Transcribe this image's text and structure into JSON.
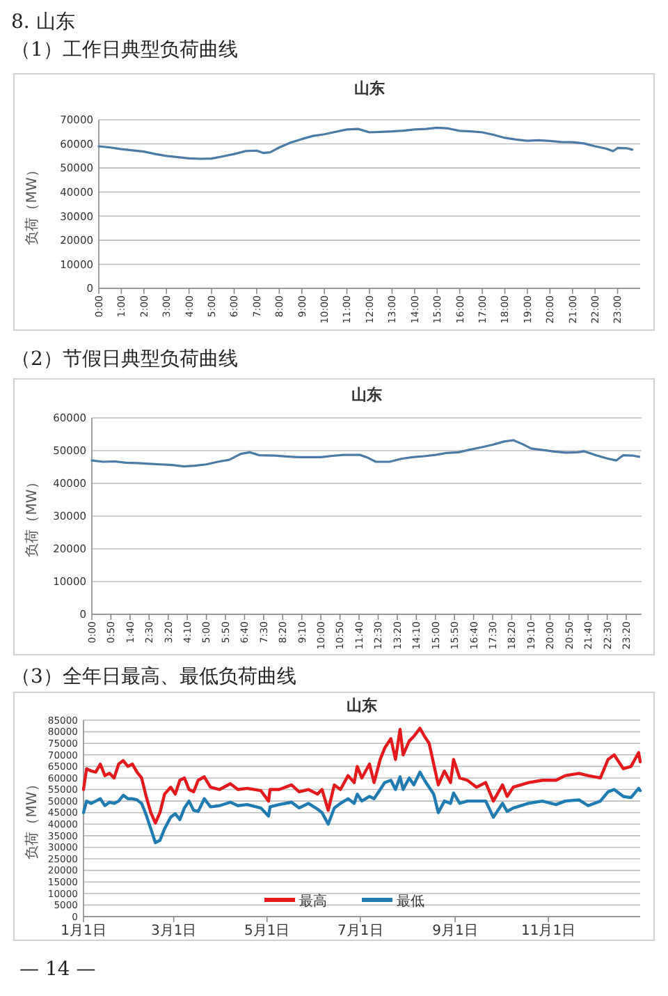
{
  "chart_data": [
    {
      "type": "line",
      "title": "山东",
      "annotations": [
        "8. 山东",
        "（1）工作日典型负荷曲线"
      ],
      "ylabel": "负荷（MW）",
      "grid": "y",
      "color": "#4a7ba7",
      "x": [
        0,
        0.5,
        1,
        1.5,
        2,
        2.5,
        3,
        3.5,
        4,
        4.5,
        5,
        5.5,
        6,
        6.5,
        7,
        7.3,
        7.6,
        8,
        8.5,
        9,
        9.5,
        10,
        10.5,
        11,
        11.5,
        12,
        12.5,
        13,
        13.5,
        14,
        14.5,
        15,
        15.5,
        16,
        16.5,
        17,
        17.5,
        18,
        18.5,
        19,
        19.5,
        20,
        20.5,
        21,
        21.5,
        22,
        22.5,
        22.8,
        23,
        23.4,
        23.65
      ],
      "values": [
        59000,
        58500,
        57800,
        57300,
        56800,
        55800,
        55000,
        54500,
        54000,
        53800,
        53900,
        54800,
        55800,
        57000,
        57200,
        56200,
        56500,
        58500,
        60500,
        62000,
        63300,
        64000,
        65000,
        66000,
        66200,
        64800,
        65000,
        65200,
        65500,
        66000,
        66200,
        66700,
        66400,
        65400,
        65200,
        64800,
        63800,
        62500,
        61800,
        61300,
        61500,
        61200,
        60800,
        60700,
        60200,
        59000,
        58000,
        57000,
        58300,
        58200,
        57600
      ],
      "xlim": [
        0,
        24
      ],
      "ylim": [
        0,
        70000
      ],
      "yticks": [
        0,
        10000,
        20000,
        30000,
        40000,
        50000,
        60000,
        70000
      ],
      "xticks": [
        {
          "value": 0,
          "label": "0:00"
        },
        {
          "value": 1,
          "label": "1:00"
        },
        {
          "value": 2,
          "label": "2:00"
        },
        {
          "value": 3,
          "label": "3:00"
        },
        {
          "value": 4,
          "label": "4:00"
        },
        {
          "value": 5,
          "label": "5:00"
        },
        {
          "value": 6,
          "label": "6:00"
        },
        {
          "value": 7,
          "label": "7:00"
        },
        {
          "value": 8,
          "label": "8:00"
        },
        {
          "value": 9,
          "label": "9:00"
        },
        {
          "value": 10,
          "label": "10:00"
        },
        {
          "value": 11,
          "label": "11:00"
        },
        {
          "value": 12,
          "label": "12:00"
        },
        {
          "value": 13,
          "label": "13:00"
        },
        {
          "value": 14,
          "label": "14:00"
        },
        {
          "value": 15,
          "label": "15:00"
        },
        {
          "value": 16,
          "label": "16:00"
        },
        {
          "value": 17,
          "label": "17:00"
        },
        {
          "value": 18,
          "label": "18:00"
        },
        {
          "value": 19,
          "label": "19:00"
        },
        {
          "value": 20,
          "label": "20:00"
        },
        {
          "value": 21,
          "label": "21:00"
        },
        {
          "value": 22,
          "label": "22:00"
        },
        {
          "value": 23,
          "label": "23:00"
        }
      ]
    },
    {
      "type": "line",
      "title": "山东",
      "annotations": [
        "（2）节假日典型负荷曲线"
      ],
      "ylabel": "负荷（MW）",
      "grid": "y",
      "color": "#4a7ba7",
      "x": [
        0,
        0.5,
        1,
        1.5,
        2,
        2.5,
        3,
        3.5,
        4,
        4.5,
        5,
        5.5,
        6,
        6.5,
        6.9,
        7.3,
        8,
        8.5,
        9,
        10,
        10.5,
        11,
        11.7,
        12,
        12.4,
        13,
        13.5,
        14,
        14.5,
        15,
        15.5,
        16,
        16.5,
        17,
        17.5,
        18,
        18.4,
        18.8,
        19.2,
        19.7,
        20.2,
        20.7,
        21.2,
        21.5,
        22,
        22.5,
        22.9,
        23.2,
        23.6,
        23.9
      ],
      "values": [
        47000,
        46600,
        46700,
        46300,
        46200,
        46000,
        45800,
        45600,
        45200,
        45400,
        45800,
        46600,
        47200,
        49000,
        49500,
        48600,
        48500,
        48200,
        48000,
        48000,
        48400,
        48700,
        48700,
        48000,
        46600,
        46600,
        47500,
        48000,
        48300,
        48700,
        49300,
        49500,
        50300,
        51000,
        51800,
        52800,
        53200,
        52000,
        50600,
        50200,
        49700,
        49400,
        49500,
        49800,
        48600,
        47600,
        47000,
        48600,
        48500,
        48100
      ],
      "xlim": [
        0,
        24
      ],
      "ylim": [
        0,
        60000
      ],
      "yticks": [
        0,
        10000,
        20000,
        30000,
        40000,
        50000,
        60000
      ],
      "xticks": [
        {
          "value": 0,
          "label": "0:00"
        },
        {
          "value": 0.8333,
          "label": "0:50"
        },
        {
          "value": 1.6667,
          "label": "1:40"
        },
        {
          "value": 2.5,
          "label": "2:30"
        },
        {
          "value": 3.3333,
          "label": "3:20"
        },
        {
          "value": 4.1667,
          "label": "4:10"
        },
        {
          "value": 5,
          "label": "5:00"
        },
        {
          "value": 5.8333,
          "label": "5:50"
        },
        {
          "value": 6.6667,
          "label": "6:40"
        },
        {
          "value": 7.5,
          "label": "7:30"
        },
        {
          "value": 8.3333,
          "label": "8:20"
        },
        {
          "value": 9.1667,
          "label": "9:10"
        },
        {
          "value": 10,
          "label": "10:00"
        },
        {
          "value": 10.8333,
          "label": "10:50"
        },
        {
          "value": 11.6667,
          "label": "11:40"
        },
        {
          "value": 12.5,
          "label": "12:30"
        },
        {
          "value": 13.3333,
          "label": "13:20"
        },
        {
          "value": 14.1667,
          "label": "14:10"
        },
        {
          "value": 15,
          "label": "15:00"
        },
        {
          "value": 15.8333,
          "label": "15:50"
        },
        {
          "value": 16.6667,
          "label": "16:40"
        },
        {
          "value": 17.5,
          "label": "17:30"
        },
        {
          "value": 18.3333,
          "label": "18:20"
        },
        {
          "value": 19.1667,
          "label": "19:10"
        },
        {
          "value": 20,
          "label": "20:00"
        },
        {
          "value": 20.8333,
          "label": "20:50"
        },
        {
          "value": 21.6667,
          "label": "21:40"
        },
        {
          "value": 22.5,
          "label": "22:30"
        },
        {
          "value": 23.3333,
          "label": "23:20"
        }
      ]
    },
    {
      "type": "line",
      "title": "山东",
      "annotations": [
        "（3）全年日最高、最低负荷曲线",
        "— 14 —"
      ],
      "ylabel": "负荷（MW）",
      "grid": "y",
      "legend": "bottom",
      "x": [
        "--01-01",
        "--01-03",
        "--01-06",
        "--01-09",
        "--01-12",
        "--01-15",
        "--01-18",
        "--01-21",
        "--01-24",
        "--01-27",
        "--01-30",
        "--02-02",
        "--02-05",
        "--02-08",
        "--02-11",
        "--02-14",
        "--02-17",
        "--02-20",
        "--02-23",
        "--02-27",
        "--03-02",
        "--03-05",
        "--03-08",
        "--03-11",
        "--03-14",
        "--03-17",
        "--03-21",
        "--03-25",
        "--03-31",
        "--04-07",
        "--04-12",
        "--04-18",
        "--04-27",
        "--05-02",
        "--05-03",
        "--05-09",
        "--05-17",
        "--05-22",
        "--05-28",
        "--06-03",
        "--06-06",
        "--06-10",
        "--06-14",
        "--06-18",
        "--06-23",
        "--06-27",
        "--06-29",
        "--07-02",
        "--07-07",
        "--07-10",
        "--07-14",
        "--07-17",
        "--07-21",
        "--07-24",
        "--07-27",
        "--07-29",
        "--08-02",
        "--08-05",
        "--08-09",
        "--08-12",
        "--08-15",
        "--08-18",
        "--08-21",
        "--08-25",
        "--08-29",
        "--08-31",
        "--09-04",
        "--09-09",
        "--09-15",
        "--09-21",
        "--09-26",
        "--10-02",
        "--10-05",
        "--10-09",
        "--10-19",
        "--10-28",
        "--11-06",
        "--11-12",
        "--11-21",
        "--11-27",
        "--12-05",
        "--12-10",
        "--12-14",
        "--12-20",
        "--12-25",
        "--12-30",
        "--12-31"
      ],
      "series": [
        {
          "name": "最高",
          "color": "#e3191c",
          "values": [
            55000,
            64000,
            63000,
            62500,
            66000,
            61000,
            62000,
            60000,
            66000,
            67500,
            65000,
            66000,
            62500,
            60000,
            52000,
            45000,
            40500,
            45000,
            53000,
            56000,
            53000,
            59000,
            60000,
            55000,
            54000,
            59000,
            60500,
            56000,
            55000,
            57500,
            55000,
            55500,
            54500,
            50000,
            55000,
            55000,
            57000,
            54000,
            55000,
            53000,
            55000,
            46000,
            57000,
            55000,
            61000,
            58000,
            65000,
            60000,
            66000,
            58000,
            68000,
            73000,
            77000,
            68000,
            81000,
            70000,
            76000,
            78000,
            81500,
            78000,
            75000,
            66000,
            57000,
            63000,
            58000,
            68000,
            60000,
            59000,
            56000,
            58000,
            50000,
            57000,
            52000,
            56000,
            58000,
            59000,
            59000,
            61000,
            62000,
            61000,
            60000,
            68000,
            70000,
            64000,
            65000,
            71000,
            67000
          ]
        },
        {
          "name": "最低",
          "color": "#1f7bb0",
          "values": [
            45000,
            50000,
            49000,
            50000,
            51000,
            48000,
            49500,
            49000,
            50000,
            52500,
            51000,
            51000,
            50500,
            49000,
            44000,
            38000,
            32000,
            33000,
            38000,
            43000,
            44500,
            42000,
            47000,
            50000,
            46000,
            45500,
            51000,
            47500,
            48000,
            49500,
            48000,
            48500,
            47000,
            43500,
            47500,
            48500,
            49500,
            47000,
            49000,
            46500,
            45000,
            40000,
            47000,
            49000,
            51000,
            49000,
            53000,
            50000,
            52000,
            51000,
            55000,
            58000,
            59000,
            55000,
            60500,
            55000,
            60000,
            57000,
            62500,
            59000,
            56000,
            53000,
            45000,
            50000,
            49000,
            53500,
            49000,
            50000,
            50000,
            50000,
            43000,
            49000,
            45500,
            47000,
            49000,
            50000,
            48500,
            50000,
            50500,
            48000,
            50000,
            54000,
            55000,
            52000,
            51500,
            55500,
            54500
          ]
        }
      ],
      "xlim": [
        "--01-01",
        "--12-31"
      ],
      "ylim": [
        0,
        85000
      ],
      "yticks": [
        0,
        5000,
        10000,
        15000,
        20000,
        25000,
        30000,
        35000,
        40000,
        45000,
        50000,
        55000,
        60000,
        65000,
        70000,
        75000,
        80000,
        85000
      ],
      "xticks": [
        {
          "value": "--01-01",
          "label": "1月1日"
        },
        {
          "value": "--03-01",
          "label": "3月1日"
        },
        {
          "value": "--05-01",
          "label": "5月1日"
        },
        {
          "value": "--07-01",
          "label": "7月1日"
        },
        {
          "value": "--09-01",
          "label": "9月1日"
        },
        {
          "value": "--11-01",
          "label": "11月1日"
        }
      ]
    }
  ]
}
